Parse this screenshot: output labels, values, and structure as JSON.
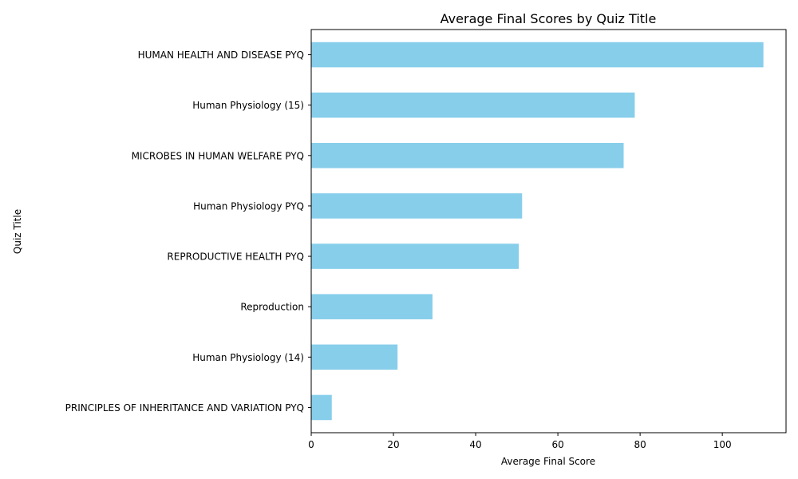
{
  "chart_data": {
    "type": "bar",
    "orientation": "horizontal",
    "title": "Average Final Scores by Quiz Title",
    "xlabel": "Average Final Score",
    "ylabel": "Quiz Title",
    "categories": [
      "HUMAN HEALTH AND DISEASE PYQ",
      "Human Physiology (15)",
      "MICROBES IN HUMAN WELFARE  PYQ",
      "Human Physiology PYQ",
      "REPRODUCTIVE HEALTH PYQ",
      "Reproduction",
      "Human Physiology (14)",
      "PRINCIPLES OF INHERITANCE AND VARIATION PYQ"
    ],
    "values": [
      110,
      78.7,
      76,
      51.3,
      50.5,
      29.5,
      21,
      5
    ],
    "xlim": [
      0,
      115.5
    ],
    "xticks": [
      0,
      20,
      40,
      60,
      80,
      100
    ],
    "grid": false,
    "bar_color": "#87ceeb"
  }
}
